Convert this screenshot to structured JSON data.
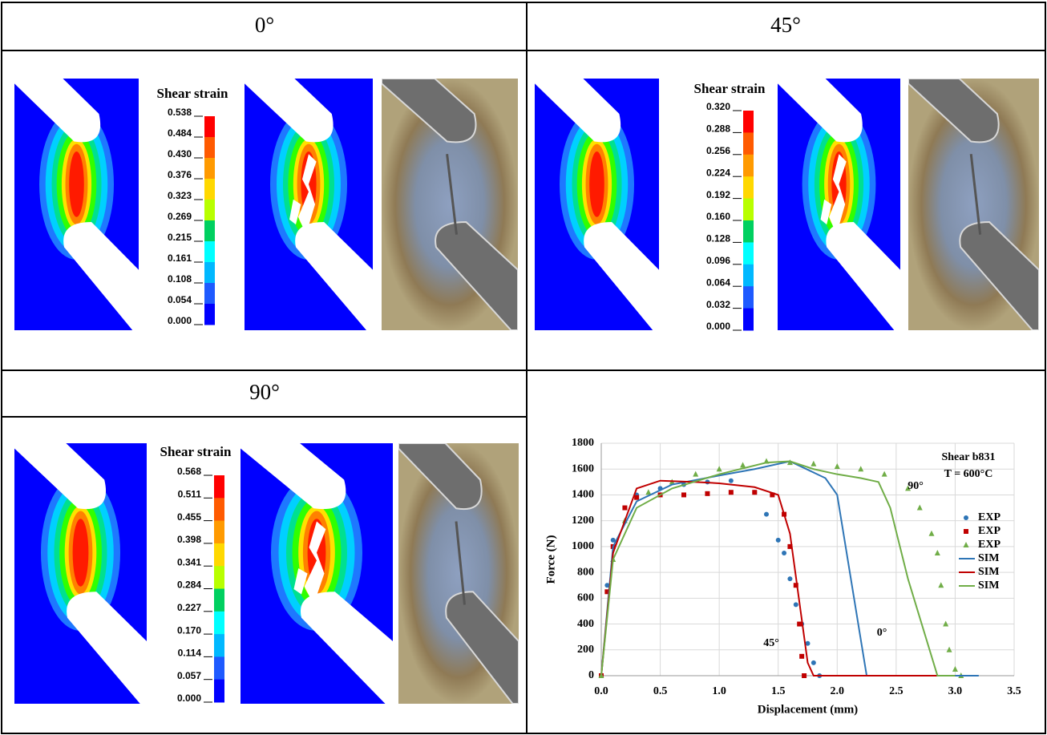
{
  "panels": [
    {
      "title": "0°",
      "colorbar": {
        "title": "Shear strain",
        "ticks": [
          "0.538",
          "0.484",
          "0.430",
          "0.376",
          "0.323",
          "0.269",
          "0.215",
          "0.161",
          "0.108",
          "0.054",
          "0.000"
        ]
      }
    },
    {
      "title": "45°",
      "colorbar": {
        "title": "Shear strain",
        "ticks": [
          "0.320",
          "0.288",
          "0.256",
          "0.224",
          "0.192",
          "0.160",
          "0.128",
          "0.096",
          "0.064",
          "0.032",
          "0.000"
        ]
      }
    },
    {
      "title": "90°",
      "colorbar": {
        "title": "Shear strain",
        "ticks": [
          "0.568",
          "0.511",
          "0.455",
          "0.398",
          "0.341",
          "0.284",
          "0.227",
          "0.170",
          "0.114",
          "0.057",
          "0.000"
        ]
      }
    }
  ],
  "chart_data": {
    "type": "line",
    "xlabel": "Displacement (mm)",
    "ylabel": "Force (N)",
    "annotations": [
      "Shear b831",
      "T = 600°C",
      "90°",
      "45°",
      "0°"
    ],
    "xlim": [
      0,
      3.5
    ],
    "xticks": [
      {
        "value": 0,
        "label": "0.0"
      },
      0.5,
      {
        "value": 1,
        "label": "1.0"
      },
      1.5,
      {
        "value": 2,
        "label": "2.0"
      },
      2.5,
      {
        "value": 3,
        "label": "3.0"
      },
      3.5
    ],
    "ylim": [
      0,
      1800
    ],
    "yticks": [
      0,
      200,
      400,
      600,
      800,
      1000,
      1200,
      1400,
      1600,
      1800
    ],
    "grid": true,
    "series": [
      {
        "name": "EXP",
        "color": "#2e75b6",
        "style": "points",
        "marker": "circle",
        "x": [
          0,
          0.05,
          0.1,
          0.2,
          0.3,
          0.5,
          0.7,
          0.9,
          1.1,
          1.3,
          1.4,
          1.5,
          1.55,
          1.6,
          1.65,
          1.7,
          1.75,
          1.8,
          1.85
        ],
        "values": [
          0,
          700,
          1050,
          1300,
          1400,
          1450,
          1480,
          1500,
          1510,
          1420,
          1250,
          1050,
          950,
          750,
          550,
          400,
          250,
          100,
          0
        ]
      },
      {
        "name": "EXP",
        "color": "#c00000",
        "style": "points",
        "marker": "square",
        "x": [
          0,
          0.05,
          0.1,
          0.2,
          0.3,
          0.5,
          0.7,
          0.9,
          1.1,
          1.3,
          1.45,
          1.55,
          1.6,
          1.65,
          1.68,
          1.7,
          1.72
        ],
        "values": [
          0,
          650,
          1000,
          1300,
          1380,
          1400,
          1400,
          1410,
          1420,
          1420,
          1400,
          1250,
          1000,
          700,
          400,
          150,
          0
        ]
      },
      {
        "name": "EXP",
        "color": "#70ad47",
        "style": "points",
        "marker": "triangle",
        "x": [
          0,
          0.1,
          0.2,
          0.4,
          0.6,
          0.8,
          1.0,
          1.2,
          1.4,
          1.6,
          1.8,
          2.0,
          2.2,
          2.4,
          2.6,
          2.7,
          2.8,
          2.85,
          2.88,
          2.92,
          2.95,
          3.0,
          3.05
        ],
        "values": [
          0,
          900,
          1200,
          1420,
          1500,
          1560,
          1600,
          1630,
          1660,
          1650,
          1640,
          1620,
          1600,
          1560,
          1450,
          1300,
          1100,
          950,
          700,
          400,
          200,
          50,
          0
        ]
      },
      {
        "name": "SIM",
        "color": "#2e75b6",
        "style": "line",
        "x": [
          0,
          0.1,
          0.3,
          0.6,
          1.0,
          1.3,
          1.6,
          1.9,
          2.0,
          2.25,
          3.2
        ],
        "values": [
          0,
          1000,
          1350,
          1480,
          1550,
          1600,
          1660,
          1530,
          1400,
          0,
          0
        ]
      },
      {
        "name": "SIM",
        "color": "#c00000",
        "style": "line",
        "x": [
          0,
          0.1,
          0.3,
          0.5,
          0.8,
          1.0,
          1.3,
          1.5,
          1.6,
          1.75,
          1.8,
          3.0
        ],
        "values": [
          0,
          950,
          1450,
          1510,
          1500,
          1490,
          1460,
          1400,
          1100,
          100,
          0,
          0
        ]
      },
      {
        "name": "SIM",
        "color": "#70ad47",
        "style": "line",
        "x": [
          0,
          0.1,
          0.3,
          0.6,
          1.0,
          1.4,
          1.6,
          1.8,
          2.0,
          2.2,
          2.35,
          2.45,
          2.6,
          2.85,
          3.0
        ],
        "values": [
          0,
          900,
          1300,
          1450,
          1560,
          1650,
          1660,
          1600,
          1560,
          1530,
          1500,
          1300,
          750,
          0,
          0
        ]
      }
    ]
  }
}
